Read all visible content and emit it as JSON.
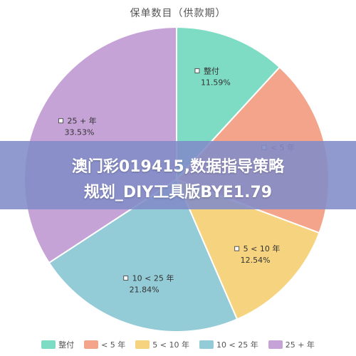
{
  "chart_data": {
    "type": "pie",
    "title": "保单数目（供款期）",
    "slices": [
      {
        "label": "整付",
        "value": 11.59,
        "display": "11.59%",
        "color": "#7fdcc4"
      },
      {
        "label": "< 5 年",
        "value": 18.5,
        "display": "",
        "color": "#f4a48a"
      },
      {
        "label": "5 < 10 年",
        "value": 12.54,
        "display": "12.54%",
        "color": "#f6d37e"
      },
      {
        "label": "10 < 25 年",
        "value": 21.84,
        "display": "21.84%",
        "color": "#93cbd6"
      },
      {
        "label": "25 + 年",
        "value": 33.53,
        "display": "33.53%",
        "color": "#c6a3d6"
      }
    ],
    "legend_position": "bottom"
  },
  "banner": {
    "line1": "澳门彩019415,数据指导策略",
    "line2": "规划_DIY工具版BYE1.79"
  }
}
